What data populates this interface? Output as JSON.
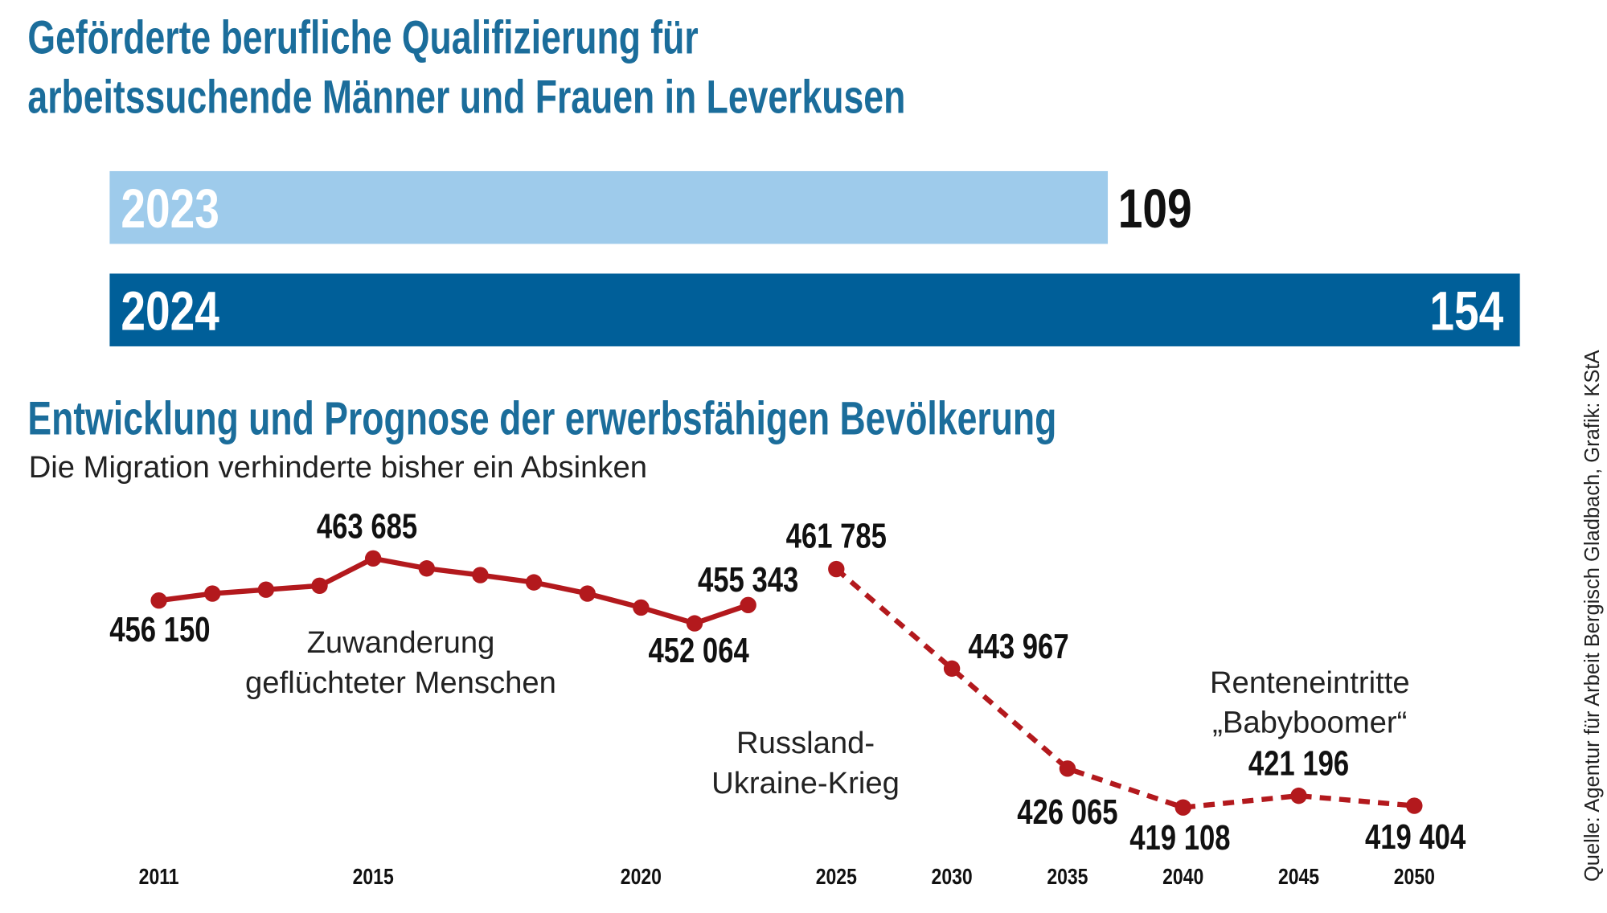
{
  "chart_data": [
    {
      "type": "bar",
      "title": [
        "Geförderte berufliche Qualifizierung für",
        "arbeitssuchende Männer und Frauen in Leverkusen"
      ],
      "orientation": "horizontal",
      "categories": [
        "2023",
        "2024"
      ],
      "values": [
        109,
        154
      ],
      "colors": [
        "#9ecbeb",
        "#005f99"
      ]
    },
    {
      "type": "line",
      "title": "Entwicklung und Prognose der erwerbsfähigen Bevölkerung",
      "subtitle": "Die Migration verhinderte bisher ein Absinken",
      "xlim": [
        2011,
        2050
      ],
      "xticks": [
        2011,
        2015,
        2020,
        2025,
        2030,
        2035,
        2040,
        2045,
        2050
      ],
      "series": [
        {
          "color": "#b3191d",
          "style": "solid",
          "x": [
            2011,
            2012,
            2013,
            2014,
            2015,
            2016,
            2017,
            2018,
            2019,
            2020,
            2021,
            2022
          ],
          "values": [
            456150,
            457400,
            458100,
            458800,
            463685,
            461900,
            460700,
            459400,
            457400,
            454900,
            452064,
            455343
          ],
          "value_labels": [
            "456 150",
            null,
            null,
            null,
            "463 685",
            null,
            null,
            null,
            null,
            null,
            "452 064",
            "455 343"
          ]
        },
        {
          "color": "#b3191d",
          "style": "dashed",
          "x": [
            2025,
            2030,
            2035,
            2040,
            2045,
            2050
          ],
          "values": [
            461785,
            443967,
            426065,
            419108,
            421196,
            419404
          ],
          "value_labels": [
            "461 785",
            "443 967",
            "426 065",
            "419 108",
            "421 196",
            "419 404"
          ]
        }
      ],
      "annotations": [
        [
          "Zuwanderung",
          "geflüchteter Menschen"
        ],
        [
          "Russland-",
          "Ukraine-Krieg"
        ],
        [
          "Renteneintritte",
          "„Babyboomer“"
        ]
      ]
    }
  ],
  "source": "Quelle: Agentur für Arbeit Bergisch Gladbach, Grafik: KStA"
}
